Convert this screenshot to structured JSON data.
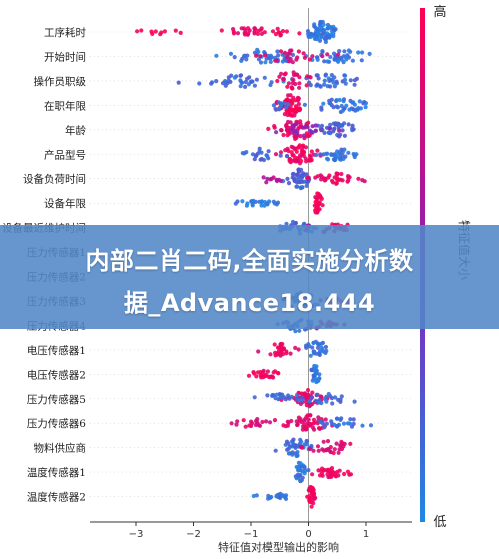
{
  "chart_data": {
    "type": "scatter",
    "subtype": "beeswarm",
    "xlabel": "特征值对模型输出的影响",
    "x_ticks": [
      -3,
      -2,
      -1,
      0,
      1
    ],
    "xlim": [
      -3.8,
      1.8
    ],
    "zero_line": true,
    "colorbar": {
      "label": "特征值大小",
      "high_label": "高",
      "low_label": "低",
      "high_color": "#ff0052",
      "mid_color": "#8a1fb8",
      "low_color": "#1e88e5"
    },
    "features": [
      {
        "name": "工序耗时",
        "clusters": [
          {
            "c": 0.25,
            "w": 0.25,
            "n": 70,
            "v": 0.08,
            "h": 1.0
          },
          {
            "c": -0.9,
            "w": 0.7,
            "n": 35,
            "v": 0.92,
            "h": 0.3
          },
          {
            "c": -2.6,
            "w": 0.4,
            "n": 10,
            "v": 0.96,
            "h": 0.1
          }
        ]
      },
      {
        "name": "开始时间",
        "clusters": [
          {
            "c": -0.8,
            "w": 0.7,
            "n": 40,
            "v": 0.1,
            "h": 0.6
          },
          {
            "c": 0.5,
            "w": 0.5,
            "n": 40,
            "v": 0.12,
            "h": 0.6
          },
          {
            "c": -0.3,
            "w": 0.6,
            "n": 25,
            "v": 0.85,
            "h": 0.6
          }
        ]
      },
      {
        "name": "操作员职级",
        "clusters": [
          {
            "c": -1.1,
            "w": 0.8,
            "n": 40,
            "v": 0.15,
            "h": 0.5
          },
          {
            "c": 0.4,
            "w": 0.5,
            "n": 35,
            "v": 0.15,
            "h": 0.6
          },
          {
            "c": -0.3,
            "w": 0.3,
            "n": 25,
            "v": 0.9,
            "h": 0.9
          }
        ]
      },
      {
        "name": "在职年限",
        "clusters": [
          {
            "c": -0.3,
            "w": 0.25,
            "n": 60,
            "v": 0.95,
            "h": 1.0
          },
          {
            "c": 0.6,
            "w": 0.5,
            "n": 40,
            "v": 0.12,
            "h": 0.6
          },
          {
            "c": -0.5,
            "w": 0.2,
            "n": 10,
            "v": 0.1,
            "h": 0.3
          }
        ]
      },
      {
        "name": "年龄",
        "clusters": [
          {
            "c": -0.2,
            "w": 0.35,
            "n": 50,
            "v": 0.9,
            "h": 0.9
          },
          {
            "c": 0.5,
            "w": 0.4,
            "n": 40,
            "v": 0.2,
            "h": 0.6
          },
          {
            "c": -0.1,
            "w": 0.4,
            "n": 20,
            "v": 0.5,
            "h": 0.5
          }
        ]
      },
      {
        "name": "产品型号",
        "clusters": [
          {
            "c": -0.2,
            "w": 0.35,
            "n": 55,
            "v": 0.92,
            "h": 0.9
          },
          {
            "c": 0.5,
            "w": 0.35,
            "n": 35,
            "v": 0.12,
            "h": 0.5
          },
          {
            "c": -0.8,
            "w": 0.4,
            "n": 20,
            "v": 0.15,
            "h": 0.5
          }
        ]
      },
      {
        "name": "设备负荷时间",
        "clusters": [
          {
            "c": -0.15,
            "w": 0.2,
            "n": 45,
            "v": 0.2,
            "h": 0.9
          },
          {
            "c": 0.5,
            "w": 0.4,
            "n": 35,
            "v": 0.9,
            "h": 0.5
          },
          {
            "c": -0.7,
            "w": 0.3,
            "n": 10,
            "v": 0.7,
            "h": 0.3
          }
        ]
      },
      {
        "name": "设备年限",
        "clusters": [
          {
            "c": 0.15,
            "w": 0.08,
            "n": 30,
            "v": 0.98,
            "h": 1.0
          },
          {
            "c": -0.9,
            "w": 0.4,
            "n": 25,
            "v": 0.08,
            "h": 0.15
          }
        ]
      },
      {
        "name": "设备最近维护时间",
        "clusters": [
          {
            "c": -0.2,
            "w": 0.3,
            "n": 35,
            "v": 0.15,
            "h": 0.6
          },
          {
            "c": 0.4,
            "w": 0.4,
            "n": 20,
            "v": 0.9,
            "h": 0.4
          }
        ]
      },
      {
        "name": "压力传感器1",
        "clusters": []
      },
      {
        "name": "压力传感器2",
        "clusters": []
      },
      {
        "name": "压力传感器3",
        "clusters": [
          {
            "c": -0.1,
            "w": 0.3,
            "n": 35,
            "v": 0.15,
            "h": 0.8
          },
          {
            "c": 0.5,
            "w": 0.4,
            "n": 15,
            "v": 0.85,
            "h": 0.3
          }
        ]
      },
      {
        "name": "压力传感器4",
        "clusters": [
          {
            "c": -0.2,
            "w": 0.3,
            "n": 25,
            "v": 0.12,
            "h": 0.5
          },
          {
            "c": 0.3,
            "w": 0.3,
            "n": 15,
            "v": 0.85,
            "h": 0.3
          }
        ]
      },
      {
        "name": "电压传感器1",
        "clusters": [
          {
            "c": 0.15,
            "w": 0.2,
            "n": 30,
            "v": 0.12,
            "h": 0.9
          },
          {
            "c": -0.5,
            "w": 0.25,
            "n": 30,
            "v": 0.9,
            "h": 0.5
          }
        ]
      },
      {
        "name": "电压传感器2",
        "clusters": [
          {
            "c": 0.12,
            "w": 0.08,
            "n": 25,
            "v": 0.1,
            "h": 0.8
          },
          {
            "c": -0.7,
            "w": 0.3,
            "n": 25,
            "v": 0.95,
            "h": 0.25
          }
        ]
      },
      {
        "name": "压力传感器5",
        "clusters": [
          {
            "c": 0.0,
            "w": 0.25,
            "n": 45,
            "v": 0.9,
            "h": 0.8
          },
          {
            "c": -0.4,
            "w": 0.5,
            "n": 25,
            "v": 0.15,
            "h": 0.4
          },
          {
            "c": 0.4,
            "w": 0.4,
            "n": 20,
            "v": 0.15,
            "h": 0.4
          }
        ]
      },
      {
        "name": "压力传感器6",
        "clusters": [
          {
            "c": 0.0,
            "w": 0.3,
            "n": 45,
            "v": 0.88,
            "h": 0.8
          },
          {
            "c": -0.8,
            "w": 0.6,
            "n": 25,
            "v": 0.85,
            "h": 0.3
          },
          {
            "c": 0.5,
            "w": 0.5,
            "n": 25,
            "v": 0.12,
            "h": 0.4
          }
        ]
      },
      {
        "name": "物料供应商",
        "clusters": [
          {
            "c": -0.2,
            "w": 0.3,
            "n": 40,
            "v": 0.15,
            "h": 0.8
          },
          {
            "c": 0.4,
            "w": 0.4,
            "n": 30,
            "v": 0.85,
            "h": 0.6
          }
        ]
      },
      {
        "name": "温度传感器1",
        "clusters": [
          {
            "c": -0.15,
            "w": 0.1,
            "n": 30,
            "v": 0.1,
            "h": 0.9
          },
          {
            "c": 0.4,
            "w": 0.3,
            "n": 35,
            "v": 0.95,
            "h": 0.4
          }
        ]
      },
      {
        "name": "温度传感器2",
        "clusters": [
          {
            "c": 0.05,
            "w": 0.06,
            "n": 30,
            "v": 0.95,
            "h": 1.0
          },
          {
            "c": -0.5,
            "w": 0.3,
            "n": 20,
            "v": 0.1,
            "h": 0.15
          }
        ]
      }
    ]
  },
  "banner": {
    "line1": "内部二肖二码,全面实施分析数",
    "line2": "据_Advance18.444"
  }
}
